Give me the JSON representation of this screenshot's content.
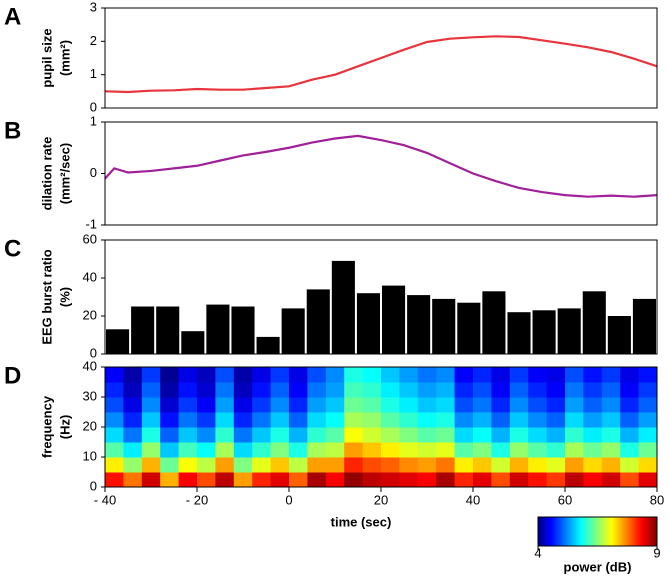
{
  "chart_data": [
    {
      "type": "line",
      "panel_label": "A",
      "ylabel": [
        "pupil size",
        "(mm²)"
      ],
      "color": "#e8343c",
      "xlim": [
        -40,
        80
      ],
      "ylim": [
        0,
        3
      ],
      "yticks": [
        0,
        1,
        2,
        3
      ],
      "x": [
        -40,
        -35,
        -30,
        -25,
        -20,
        -15,
        -10,
        -5,
        0,
        5,
        10,
        15,
        20,
        25,
        30,
        35,
        40,
        45,
        50,
        55,
        60,
        65,
        70,
        75,
        80
      ],
      "values": [
        0.5,
        0.48,
        0.52,
        0.53,
        0.57,
        0.55,
        0.55,
        0.6,
        0.65,
        0.85,
        1.0,
        1.25,
        1.5,
        1.75,
        1.98,
        2.08,
        2.12,
        2.15,
        2.13,
        2.03,
        1.93,
        1.82,
        1.68,
        1.48,
        1.25
      ]
    },
    {
      "type": "line",
      "panel_label": "B",
      "ylabel": [
        "dilation rate",
        "(mm²/sec)"
      ],
      "color": "#a0209a",
      "xlim": [
        -40,
        80
      ],
      "ylim": [
        -1,
        1
      ],
      "yticks": [
        -1,
        0,
        1
      ],
      "x": [
        -40,
        -38,
        -35,
        -30,
        -25,
        -20,
        -15,
        -10,
        -5,
        0,
        5,
        10,
        15,
        20,
        25,
        30,
        35,
        40,
        45,
        50,
        55,
        60,
        65,
        70,
        75,
        80
      ],
      "values": [
        -0.1,
        0.1,
        0.02,
        0.05,
        0.1,
        0.15,
        0.25,
        0.35,
        0.42,
        0.5,
        0.6,
        0.68,
        0.73,
        0.65,
        0.55,
        0.4,
        0.2,
        0.0,
        -0.15,
        -0.28,
        -0.36,
        -0.42,
        -0.45,
        -0.43,
        -0.45,
        -0.42
      ]
    },
    {
      "type": "bar",
      "panel_label": "C",
      "ylabel": [
        "EEG burst ratio",
        "(%)"
      ],
      "color": "#000000",
      "ylim": [
        0,
        60
      ],
      "yticks": [
        0,
        20,
        40,
        60
      ],
      "categories": [
        null,
        null,
        null,
        null,
        null,
        null,
        null,
        null,
        null,
        null,
        null,
        null,
        null,
        null,
        null,
        null,
        null,
        null,
        null,
        null,
        null,
        null
      ],
      "values": [
        13,
        25,
        25,
        12,
        26,
        25,
        9,
        24,
        34,
        49,
        32,
        36,
        31,
        29,
        27,
        33,
        22,
        23,
        24,
        33,
        20,
        29
      ]
    },
    {
      "type": "heatmap",
      "panel_label": "D",
      "ylabel": [
        "frequency",
        "(Hz)"
      ],
      "xlabel": "time (sec)",
      "xlim": [
        -40,
        80
      ],
      "xticks": [
        {
          "value": -40,
          "label": "- 40"
        },
        {
          "value": -20,
          "label": "- 20"
        },
        0,
        20,
        40,
        60,
        80
      ],
      "ylim": [
        0,
        40
      ],
      "yticks": [
        0,
        10,
        20,
        30,
        40
      ],
      "colorbar": {
        "label": "power (dB)",
        "clim": [
          4,
          9
        ],
        "ticks": [
          4,
          9
        ]
      },
      "z": [
        [
          8.3,
          7.8,
          8.6,
          7.5,
          8.4,
          8.0,
          8.7,
          7.6,
          8.2,
          8.5,
          7.9,
          8.8,
          8.4,
          8.9,
          8.7,
          8.6,
          8.5,
          8.4,
          8.8,
          8.2,
          8.5,
          8.0,
          8.6,
          8.3,
          8.1,
          8.7,
          8.4,
          8.6,
          8.0,
          8.5
        ],
        [
          7.2,
          6.6,
          7.5,
          6.4,
          7.1,
          6.8,
          7.6,
          6.5,
          7.0,
          7.4,
          6.8,
          7.6,
          7.6,
          8.2,
          8.0,
          7.9,
          7.7,
          7.6,
          7.8,
          7.2,
          7.4,
          6.9,
          7.5,
          7.2,
          7.0,
          7.6,
          7.3,
          7.5,
          6.9,
          7.3
        ],
        [
          6.3,
          5.8,
          6.6,
          5.6,
          6.2,
          5.9,
          6.7,
          5.7,
          6.1,
          6.5,
          6.0,
          6.7,
          6.8,
          7.6,
          7.4,
          7.2,
          7.0,
          6.9,
          7.0,
          6.3,
          6.5,
          6.0,
          6.6,
          6.3,
          6.1,
          6.7,
          6.4,
          6.6,
          6.0,
          6.4
        ],
        [
          5.7,
          5.2,
          6.0,
          5.1,
          5.6,
          5.3,
          6.1,
          5.2,
          5.6,
          6.0,
          5.5,
          6.1,
          6.3,
          7.1,
          6.9,
          6.7,
          6.5,
          6.3,
          6.4,
          5.7,
          5.9,
          5.5,
          6.0,
          5.7,
          5.5,
          6.1,
          5.8,
          6.0,
          5.5,
          5.8
        ],
        [
          5.3,
          4.8,
          5.6,
          4.7,
          5.2,
          4.9,
          5.7,
          4.8,
          5.2,
          5.6,
          5.1,
          5.7,
          5.9,
          6.7,
          6.6,
          6.3,
          6.1,
          5.9,
          6.0,
          5.3,
          5.5,
          5.1,
          5.6,
          5.3,
          5.1,
          5.7,
          5.4,
          5.6,
          5.1,
          5.4
        ],
        [
          5.0,
          4.5,
          5.3,
          4.4,
          4.9,
          4.6,
          5.4,
          4.5,
          4.9,
          5.3,
          4.8,
          5.4,
          5.6,
          6.4,
          6.3,
          6.0,
          5.8,
          5.6,
          5.7,
          5.0,
          5.2,
          4.8,
          5.3,
          5.0,
          4.8,
          5.4,
          5.1,
          5.3,
          4.8,
          5.1
        ],
        [
          4.8,
          4.3,
          5.1,
          4.2,
          4.7,
          4.4,
          5.2,
          4.3,
          4.7,
          5.1,
          4.6,
          5.2,
          5.4,
          6.2,
          6.1,
          5.8,
          5.6,
          5.4,
          5.5,
          4.8,
          5.0,
          4.6,
          5.1,
          4.8,
          4.6,
          5.2,
          4.9,
          5.1,
          4.6,
          4.9
        ],
        [
          4.6,
          4.2,
          4.9,
          4.1,
          4.5,
          4.3,
          5.0,
          4.2,
          4.5,
          4.9,
          4.5,
          5.0,
          5.3,
          6.0,
          5.9,
          5.6,
          5.4,
          5.2,
          5.3,
          4.6,
          4.8,
          4.5,
          4.9,
          4.6,
          4.5,
          5.0,
          4.7,
          4.9,
          4.5,
          4.7
        ]
      ]
    }
  ]
}
